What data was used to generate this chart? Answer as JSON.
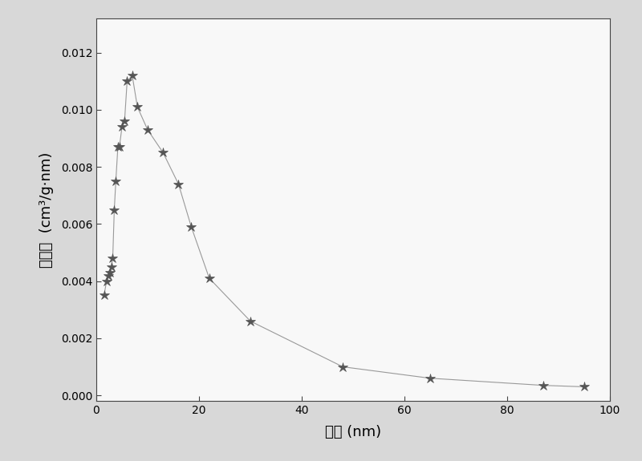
{
  "x": [
    1.5,
    2.0,
    2.3,
    2.6,
    2.9,
    3.2,
    3.5,
    3.8,
    4.2,
    4.5,
    5.0,
    5.5,
    6.0,
    7.0,
    8.0,
    10.0,
    13.0,
    16.0,
    18.5,
    22.0,
    30.0,
    48.0,
    65.0,
    87.0,
    95.0
  ],
  "y": [
    0.0035,
    0.004,
    0.0042,
    0.0043,
    0.0045,
    0.0048,
    0.0065,
    0.0075,
    0.0087,
    0.0087,
    0.0094,
    0.0096,
    0.011,
    0.0112,
    0.0101,
    0.0093,
    0.0085,
    0.0074,
    0.0059,
    0.0041,
    0.0026,
    0.001,
    0.0006,
    0.00035,
    0.0003
  ],
  "xlabel": "孔径 (nm)",
  "ylabel": "孔体积  (cm³/g·nm)",
  "xlim": [
    0,
    100
  ],
  "ylim": [
    -0.0002,
    0.0132
  ],
  "xticks": [
    0,
    20,
    40,
    60,
    80,
    100
  ],
  "yticks": [
    0.0,
    0.002,
    0.004,
    0.006,
    0.008,
    0.01,
    0.012
  ],
  "line_color": "#999999",
  "marker_color": "#555555",
  "bg_color": "#d8d8d8",
  "plot_bg_color": "#f8f8f8",
  "label_fontsize": 13,
  "tick_fontsize": 10
}
